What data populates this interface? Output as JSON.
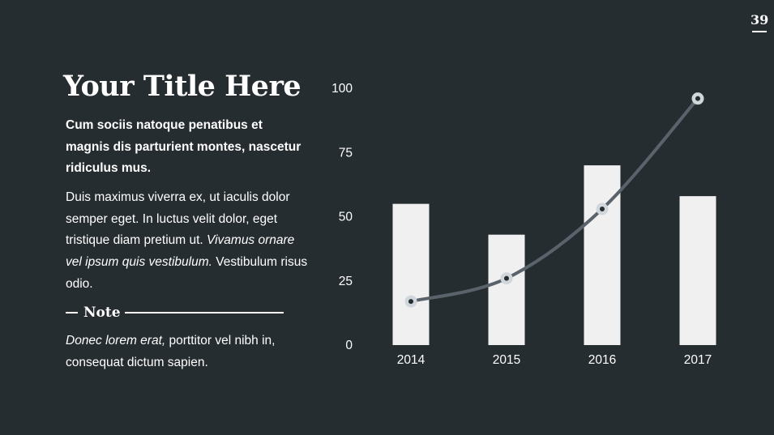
{
  "page_number": "39",
  "title": "Your Title Here",
  "lead": "Cum sociis natoque penatibus et magnis dis parturient montes, nascetur ridiculus mus.",
  "body": {
    "text_a": "Duis maximus viverra ex, ut iaculis dolor semper eget. In luctus velit dolor, eget tristique diam pretium ut.",
    "text_b_italic": "Vivamus ornare vel ipsum quis vestibulum.",
    "text_c": "Vestibulum risus odio."
  },
  "note": {
    "label": "Note",
    "italic": "Donec lorem erat,",
    "text": "porttitor vel nibh in, consequat dictum sapien."
  },
  "colors": {
    "background": "#262d30",
    "bar": "#f0f0f0",
    "line": "#5a636b",
    "marker": "#d0d6db"
  },
  "chart_data": {
    "type": "bar",
    "categories": [
      "2014",
      "2015",
      "2016",
      "2017"
    ],
    "ylim": [
      0,
      100
    ],
    "yticks": [
      "0",
      "25",
      "50",
      "75",
      "100"
    ],
    "grid": false,
    "series": [
      {
        "type": "bar",
        "values": [
          55,
          43,
          70,
          58
        ]
      },
      {
        "type": "line",
        "values": [
          17,
          26,
          53,
          96
        ]
      }
    ]
  }
}
